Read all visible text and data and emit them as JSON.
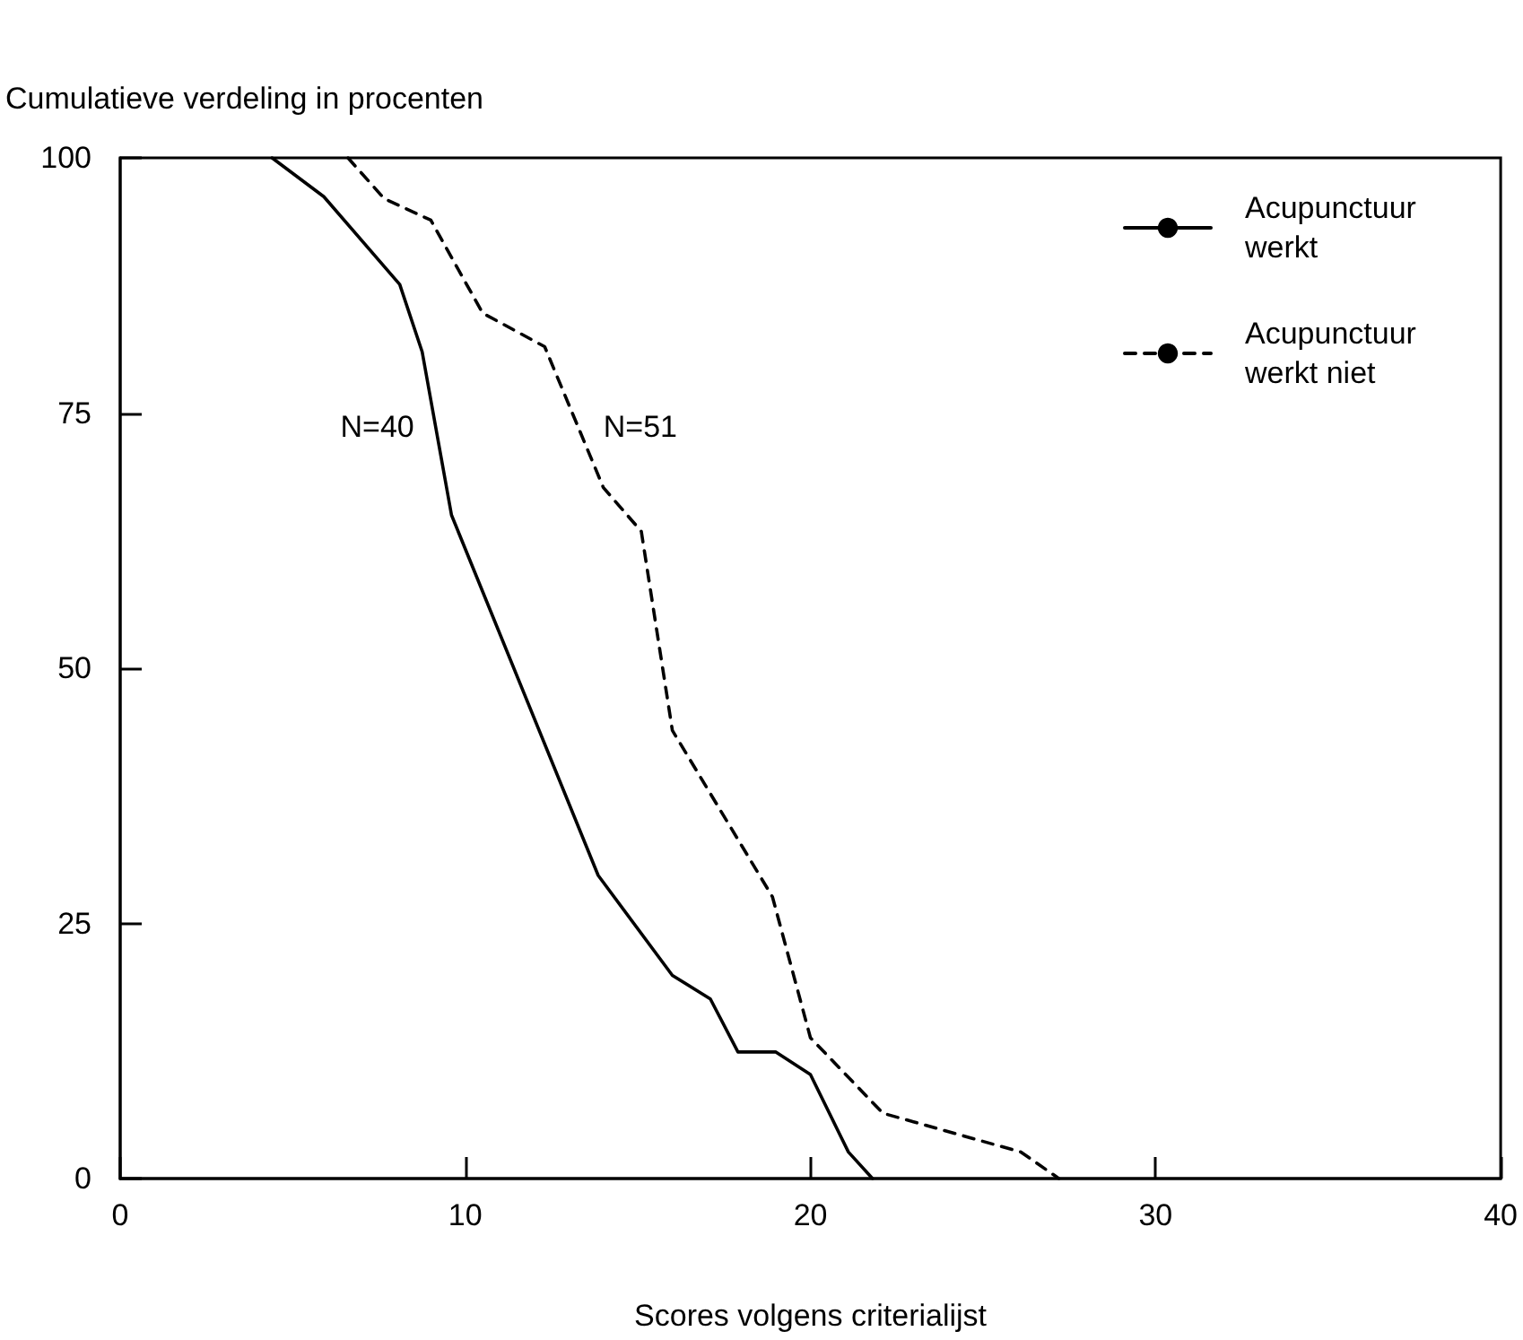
{
  "chart_data": {
    "type": "line",
    "ylabel": "Cumulatieve verdeling in procenten",
    "xlabel": "Scores volgens criterialijst",
    "xlim": [
      0,
      40
    ],
    "xticks": [
      0,
      10,
      20,
      30,
      40
    ],
    "ylim": [
      0,
      100
    ],
    "yticks": [
      0,
      25,
      50,
      75,
      100
    ],
    "grid": false,
    "legend": "top right",
    "marker": "none",
    "annotations": [
      "N=40",
      "N=51"
    ],
    "series": [
      {
        "name": "Acupunctuur werkt",
        "color": "#000000",
        "line_style": "solid",
        "x": [
          4.4,
          5.9,
          8.1,
          8.75,
          9.6,
          13.85,
          16.0,
          17.1,
          17.9,
          19.0,
          20.0,
          21.1,
          21.8
        ],
        "values": [
          100,
          96.2,
          87.6,
          81,
          65,
          29.7,
          19.9,
          17.6,
          12.4,
          12.4,
          10.2,
          2.6,
          0
        ]
      },
      {
        "name": "Acupunctuur werkt niet",
        "color": "#000000",
        "line_style": "dashed",
        "x": [
          6.6,
          7.65,
          9.0,
          10.5,
          12.3,
          14.0,
          15.1,
          16.0,
          18.9,
          20.0,
          22.1,
          26.1,
          27.2
        ],
        "values": [
          100,
          96,
          93.9,
          84.8,
          81.5,
          67.7,
          63.4,
          43.9,
          27.6,
          13.8,
          6.4,
          2.6,
          0
        ]
      }
    ]
  }
}
